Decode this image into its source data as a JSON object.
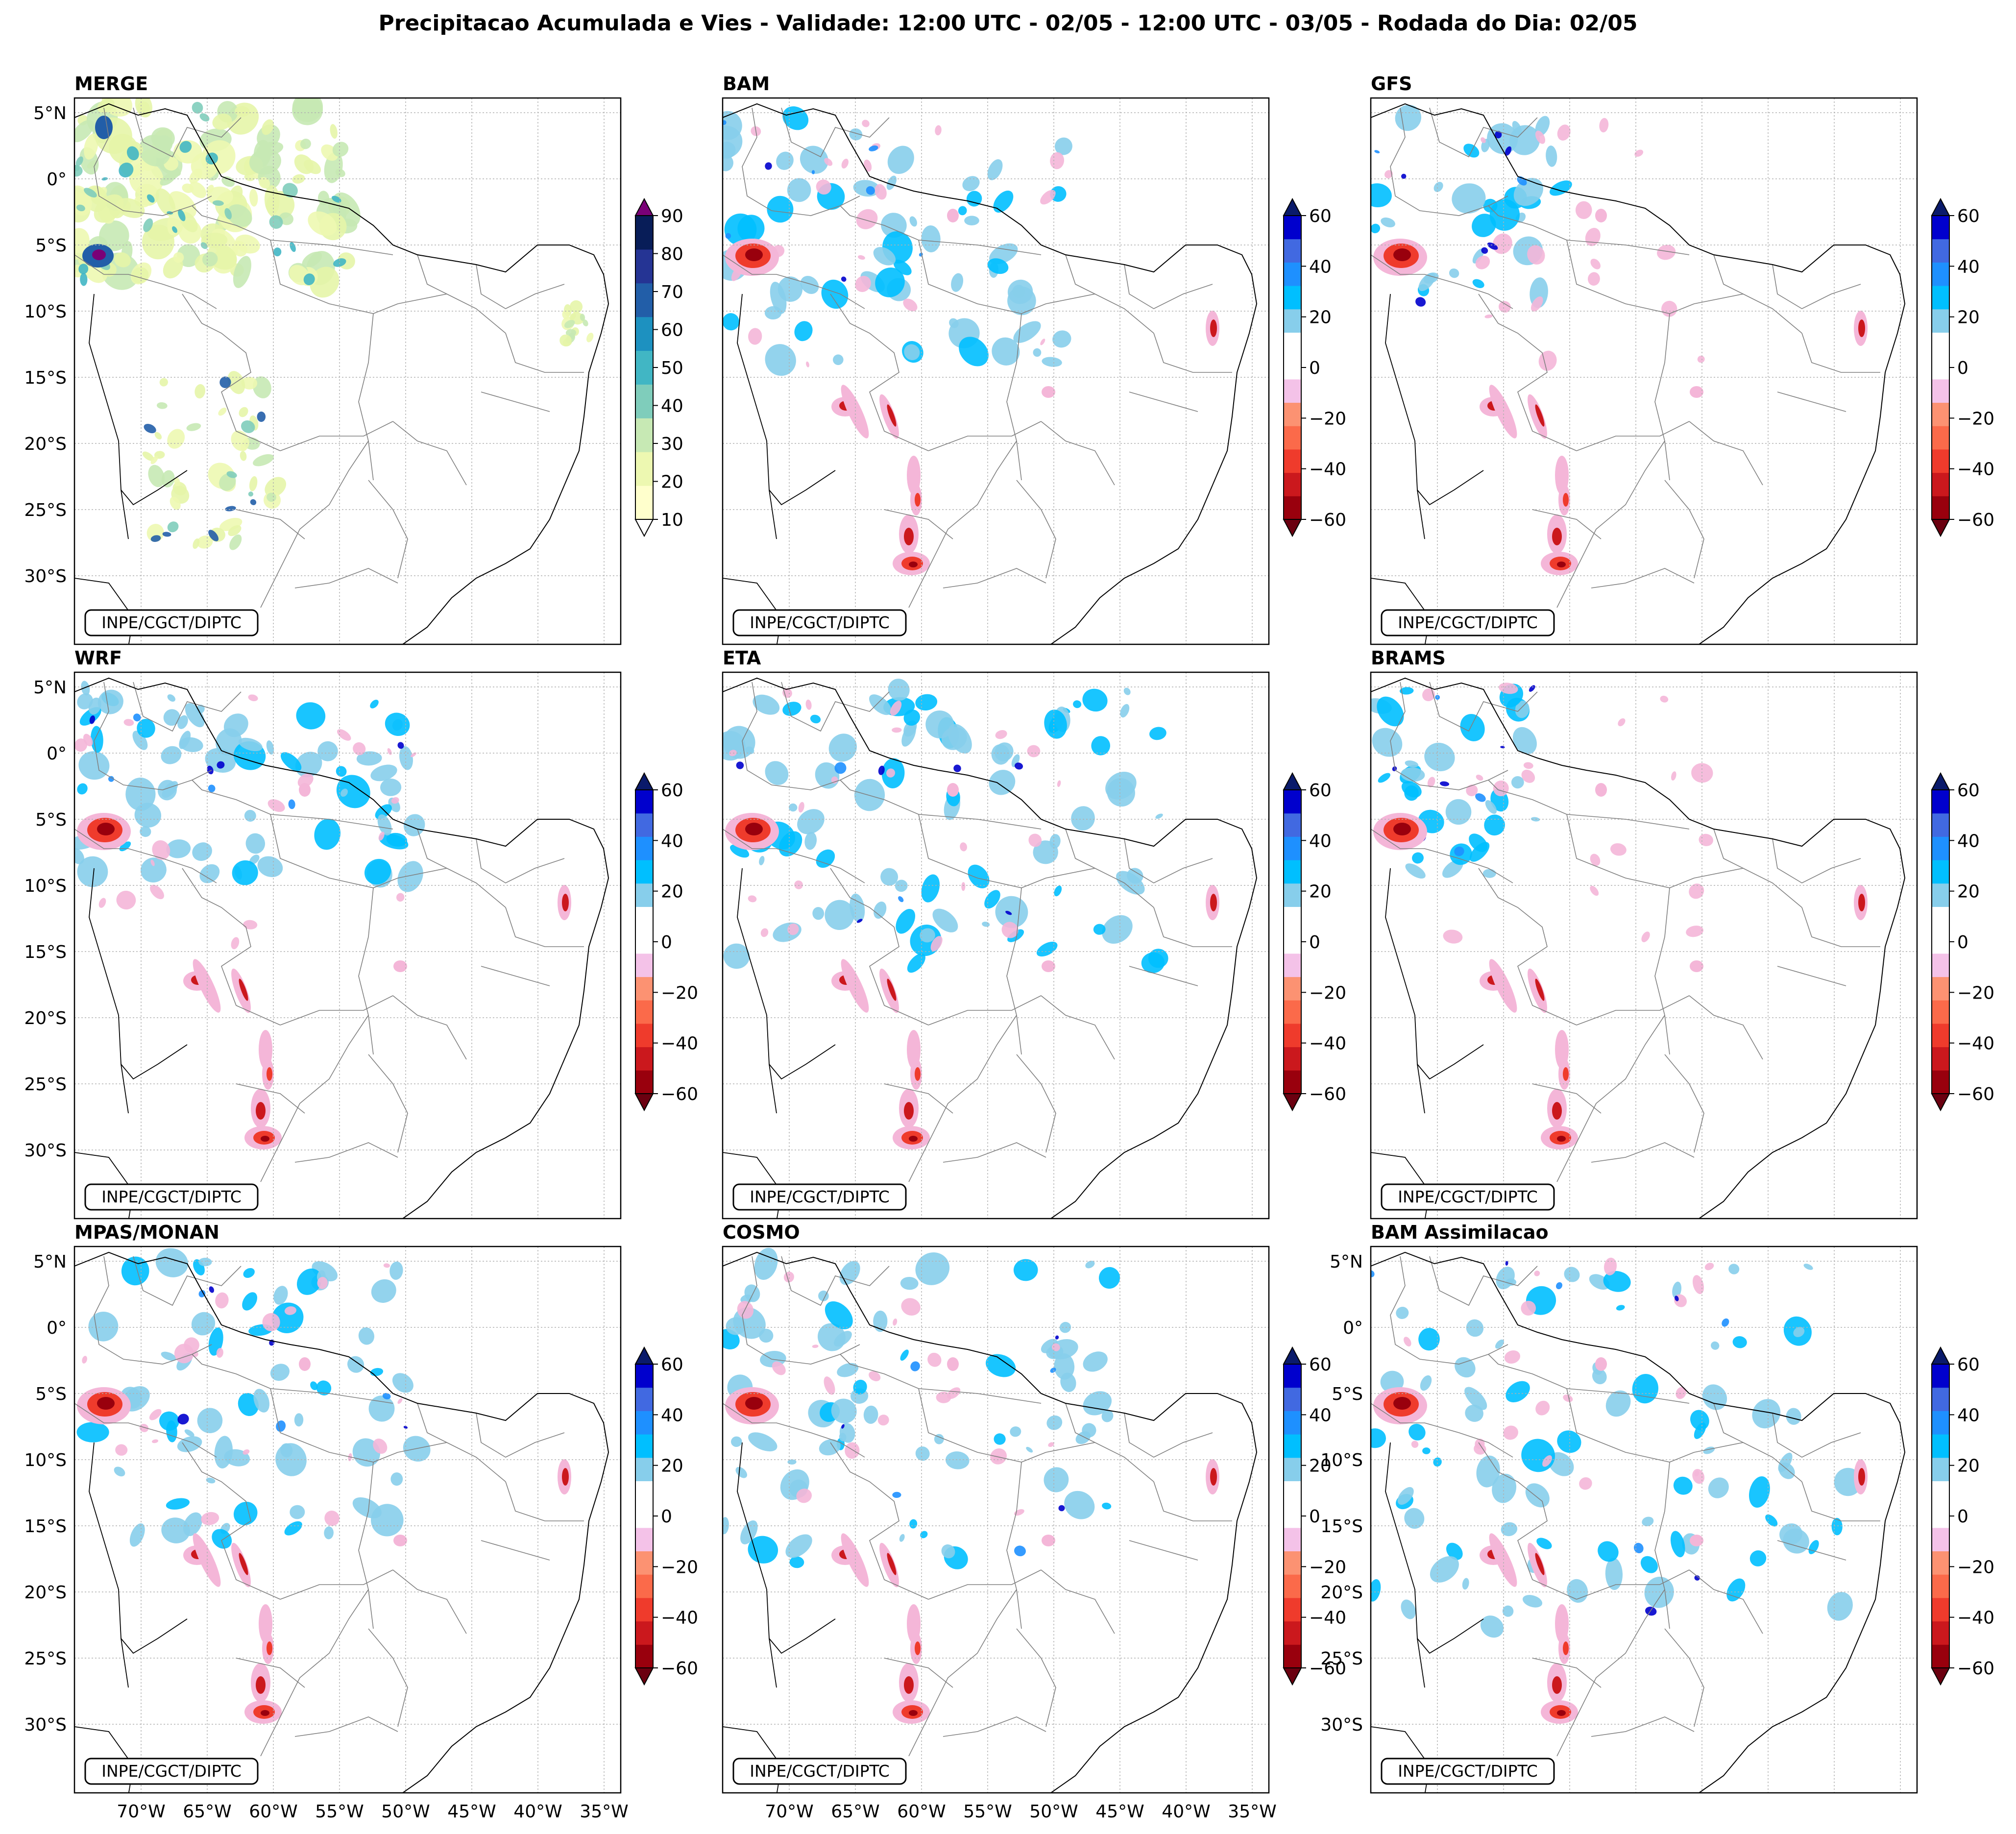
{
  "title": "Precipitacao Acumulada e Vies - Validade: 12:00 UTC - 02/05 - 12:00 UTC - 03/05 - Rodada do Dia: 02/05",
  "credit": "INPE/CGCT/DIPTC",
  "lat_labels": [
    "5°N",
    "0°",
    "5°S",
    "10°S",
    "15°S",
    "20°S",
    "25°S",
    "30°S"
  ],
  "lon_labels": [
    "70°W",
    "65°W",
    "60°W",
    "55°W",
    "50°W",
    "45°W",
    "40°W",
    "35°W"
  ],
  "panels": [
    {
      "title": "MERGE",
      "type": "precip"
    },
    {
      "title": "BAM",
      "type": "bias"
    },
    {
      "title": "GFS",
      "type": "bias"
    },
    {
      "title": "WRF",
      "type": "bias"
    },
    {
      "title": "ETA",
      "type": "bias"
    },
    {
      "title": "BRAMS",
      "type": "bias"
    },
    {
      "title": "MPAS/MONAN",
      "type": "bias"
    },
    {
      "title": "COSMO",
      "type": "bias"
    },
    {
      "title": "BAM Assimilacao",
      "type": "bias"
    }
  ],
  "precip_colorbar": {
    "ticks": [
      "90",
      "80",
      "70",
      "60",
      "50",
      "40",
      "30",
      "20",
      "10"
    ],
    "colors": [
      "#ffffcc",
      "#edf8b1",
      "#c7e9b4",
      "#7fcdbb",
      "#41b6c4",
      "#1d91c0",
      "#225ea8",
      "#253494",
      "#081d58"
    ],
    "extend_top": "#7a0177",
    "extend_bottom": "#ffffff"
  },
  "bias_colorbar": {
    "ticks": [
      "60",
      "40",
      "20",
      "0",
      "−20",
      "−40",
      "−60"
    ],
    "colors": [
      "#99000d",
      "#cb181d",
      "#ef3b2c",
      "#fb6a4a",
      "#fc9272",
      "#f4c2e8",
      "#ffffff",
      "#ffffff",
      "#87ceeb",
      "#00bfff",
      "#1e90ff",
      "#4169e1",
      "#0000cd"
    ],
    "extend_top": "#0a1a6b",
    "extend_bottom": "#6b0010"
  },
  "palette": {
    "precip_light": "#e6f5a8",
    "precip_mid": "#7fcdbb",
    "precip_dark": "#225ea8",
    "bias_pos": "#87ceeb",
    "bias_pos_strong": "#1e90ff",
    "bias_neg": "#f4b6d8",
    "bias_neg_strong": "#cb181d"
  }
}
